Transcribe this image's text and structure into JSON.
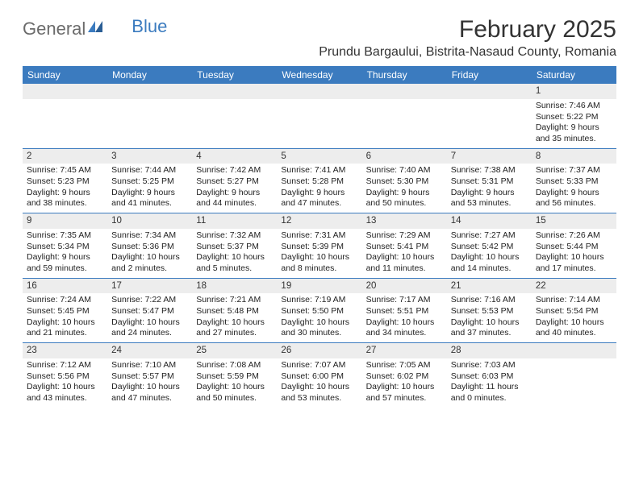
{
  "logo": {
    "text1": "General",
    "text2": "Blue"
  },
  "title": "February 2025",
  "location": "Prundu Bargaului, Bistrita-Nasaud County, Romania",
  "colors": {
    "header_bg": "#3b7bbf",
    "header_text": "#ffffff",
    "daynum_bg": "#ededed",
    "border": "#3b7bbf",
    "body_bg": "#ffffff",
    "text": "#222222",
    "logo_gray": "#6b6b6b",
    "logo_blue": "#3b7bbf"
  },
  "typography": {
    "title_fontsize": 30,
    "location_fontsize": 16,
    "header_fontsize": 12,
    "daynum_fontsize": 11.5,
    "cell_fontsize": 10.5
  },
  "columns": [
    "Sunday",
    "Monday",
    "Tuesday",
    "Wednesday",
    "Thursday",
    "Friday",
    "Saturday"
  ],
  "weeks": [
    [
      {
        "day": "",
        "sunrise": "",
        "sunset": "",
        "daylight": ""
      },
      {
        "day": "",
        "sunrise": "",
        "sunset": "",
        "daylight": ""
      },
      {
        "day": "",
        "sunrise": "",
        "sunset": "",
        "daylight": ""
      },
      {
        "day": "",
        "sunrise": "",
        "sunset": "",
        "daylight": ""
      },
      {
        "day": "",
        "sunrise": "",
        "sunset": "",
        "daylight": ""
      },
      {
        "day": "",
        "sunrise": "",
        "sunset": "",
        "daylight": ""
      },
      {
        "day": "1",
        "sunrise": "Sunrise: 7:46 AM",
        "sunset": "Sunset: 5:22 PM",
        "daylight": "Daylight: 9 hours and 35 minutes."
      }
    ],
    [
      {
        "day": "2",
        "sunrise": "Sunrise: 7:45 AM",
        "sunset": "Sunset: 5:23 PM",
        "daylight": "Daylight: 9 hours and 38 minutes."
      },
      {
        "day": "3",
        "sunrise": "Sunrise: 7:44 AM",
        "sunset": "Sunset: 5:25 PM",
        "daylight": "Daylight: 9 hours and 41 minutes."
      },
      {
        "day": "4",
        "sunrise": "Sunrise: 7:42 AM",
        "sunset": "Sunset: 5:27 PM",
        "daylight": "Daylight: 9 hours and 44 minutes."
      },
      {
        "day": "5",
        "sunrise": "Sunrise: 7:41 AM",
        "sunset": "Sunset: 5:28 PM",
        "daylight": "Daylight: 9 hours and 47 minutes."
      },
      {
        "day": "6",
        "sunrise": "Sunrise: 7:40 AM",
        "sunset": "Sunset: 5:30 PM",
        "daylight": "Daylight: 9 hours and 50 minutes."
      },
      {
        "day": "7",
        "sunrise": "Sunrise: 7:38 AM",
        "sunset": "Sunset: 5:31 PM",
        "daylight": "Daylight: 9 hours and 53 minutes."
      },
      {
        "day": "8",
        "sunrise": "Sunrise: 7:37 AM",
        "sunset": "Sunset: 5:33 PM",
        "daylight": "Daylight: 9 hours and 56 minutes."
      }
    ],
    [
      {
        "day": "9",
        "sunrise": "Sunrise: 7:35 AM",
        "sunset": "Sunset: 5:34 PM",
        "daylight": "Daylight: 9 hours and 59 minutes."
      },
      {
        "day": "10",
        "sunrise": "Sunrise: 7:34 AM",
        "sunset": "Sunset: 5:36 PM",
        "daylight": "Daylight: 10 hours and 2 minutes."
      },
      {
        "day": "11",
        "sunrise": "Sunrise: 7:32 AM",
        "sunset": "Sunset: 5:37 PM",
        "daylight": "Daylight: 10 hours and 5 minutes."
      },
      {
        "day": "12",
        "sunrise": "Sunrise: 7:31 AM",
        "sunset": "Sunset: 5:39 PM",
        "daylight": "Daylight: 10 hours and 8 minutes."
      },
      {
        "day": "13",
        "sunrise": "Sunrise: 7:29 AM",
        "sunset": "Sunset: 5:41 PM",
        "daylight": "Daylight: 10 hours and 11 minutes."
      },
      {
        "day": "14",
        "sunrise": "Sunrise: 7:27 AM",
        "sunset": "Sunset: 5:42 PM",
        "daylight": "Daylight: 10 hours and 14 minutes."
      },
      {
        "day": "15",
        "sunrise": "Sunrise: 7:26 AM",
        "sunset": "Sunset: 5:44 PM",
        "daylight": "Daylight: 10 hours and 17 minutes."
      }
    ],
    [
      {
        "day": "16",
        "sunrise": "Sunrise: 7:24 AM",
        "sunset": "Sunset: 5:45 PM",
        "daylight": "Daylight: 10 hours and 21 minutes."
      },
      {
        "day": "17",
        "sunrise": "Sunrise: 7:22 AM",
        "sunset": "Sunset: 5:47 PM",
        "daylight": "Daylight: 10 hours and 24 minutes."
      },
      {
        "day": "18",
        "sunrise": "Sunrise: 7:21 AM",
        "sunset": "Sunset: 5:48 PM",
        "daylight": "Daylight: 10 hours and 27 minutes."
      },
      {
        "day": "19",
        "sunrise": "Sunrise: 7:19 AM",
        "sunset": "Sunset: 5:50 PM",
        "daylight": "Daylight: 10 hours and 30 minutes."
      },
      {
        "day": "20",
        "sunrise": "Sunrise: 7:17 AM",
        "sunset": "Sunset: 5:51 PM",
        "daylight": "Daylight: 10 hours and 34 minutes."
      },
      {
        "day": "21",
        "sunrise": "Sunrise: 7:16 AM",
        "sunset": "Sunset: 5:53 PM",
        "daylight": "Daylight: 10 hours and 37 minutes."
      },
      {
        "day": "22",
        "sunrise": "Sunrise: 7:14 AM",
        "sunset": "Sunset: 5:54 PM",
        "daylight": "Daylight: 10 hours and 40 minutes."
      }
    ],
    [
      {
        "day": "23",
        "sunrise": "Sunrise: 7:12 AM",
        "sunset": "Sunset: 5:56 PM",
        "daylight": "Daylight: 10 hours and 43 minutes."
      },
      {
        "day": "24",
        "sunrise": "Sunrise: 7:10 AM",
        "sunset": "Sunset: 5:57 PM",
        "daylight": "Daylight: 10 hours and 47 minutes."
      },
      {
        "day": "25",
        "sunrise": "Sunrise: 7:08 AM",
        "sunset": "Sunset: 5:59 PM",
        "daylight": "Daylight: 10 hours and 50 minutes."
      },
      {
        "day": "26",
        "sunrise": "Sunrise: 7:07 AM",
        "sunset": "Sunset: 6:00 PM",
        "daylight": "Daylight: 10 hours and 53 minutes."
      },
      {
        "day": "27",
        "sunrise": "Sunrise: 7:05 AM",
        "sunset": "Sunset: 6:02 PM",
        "daylight": "Daylight: 10 hours and 57 minutes."
      },
      {
        "day": "28",
        "sunrise": "Sunrise: 7:03 AM",
        "sunset": "Sunset: 6:03 PM",
        "daylight": "Daylight: 11 hours and 0 minutes."
      },
      {
        "day": "",
        "sunrise": "",
        "sunset": "",
        "daylight": ""
      }
    ]
  ]
}
